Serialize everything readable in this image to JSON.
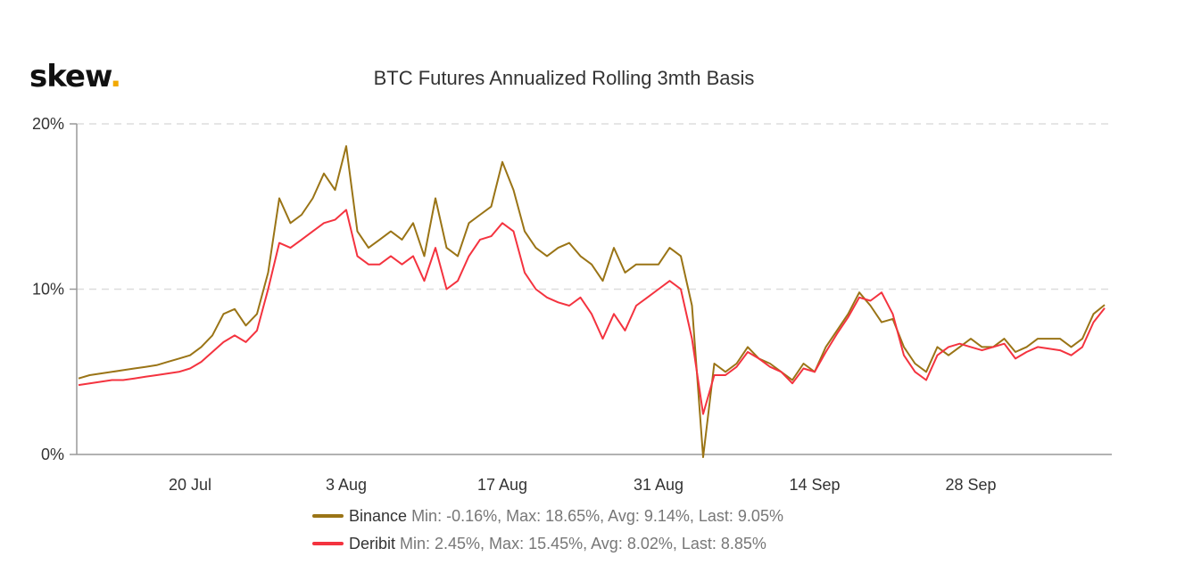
{
  "logo": {
    "text": "skew",
    "dot": "."
  },
  "chart_data": {
    "type": "line",
    "title": "BTC Futures Annualized Rolling 3mth Basis",
    "ylim": [
      0,
      20
    ],
    "yticks": [
      0,
      10,
      20
    ],
    "ytick_labels": [
      "0%",
      "10%",
      "20%"
    ],
    "xtick_labels": [
      "20 Jul",
      "3 Aug",
      "17 Aug",
      "31 Aug",
      "14 Sep",
      "28 Sep"
    ],
    "grid": "horizontal dashed",
    "legend": "bottom",
    "x": [
      "Jul 10",
      "Jul 11",
      "Jul 12",
      "Jul 13",
      "Jul 14",
      "Jul 15",
      "Jul 16",
      "Jul 17",
      "Jul 18",
      "Jul 19",
      "Jul 20",
      "Jul 21",
      "Jul 22",
      "Jul 23",
      "Jul 24",
      "Jul 25",
      "Jul 26",
      "Jul 27",
      "Jul 28",
      "Jul 29",
      "Jul 30",
      "Jul 31",
      "Aug 1",
      "Aug 2",
      "Aug 3",
      "Aug 4",
      "Aug 5",
      "Aug 6",
      "Aug 7",
      "Aug 8",
      "Aug 9",
      "Aug 10",
      "Aug 11",
      "Aug 12",
      "Aug 13",
      "Aug 14",
      "Aug 15",
      "Aug 16",
      "Aug 17",
      "Aug 18",
      "Aug 19",
      "Aug 20",
      "Aug 21",
      "Aug 22",
      "Aug 23",
      "Aug 24",
      "Aug 25",
      "Aug 26",
      "Aug 27",
      "Aug 28",
      "Aug 29",
      "Aug 30",
      "Aug 31",
      "Sep 1",
      "Sep 2",
      "Sep 3",
      "Sep 4",
      "Sep 5",
      "Sep 6",
      "Sep 7",
      "Sep 8",
      "Sep 9",
      "Sep 10",
      "Sep 11",
      "Sep 12",
      "Sep 13",
      "Sep 14",
      "Sep 15",
      "Sep 16",
      "Sep 17",
      "Sep 18",
      "Sep 19",
      "Sep 20",
      "Sep 21",
      "Sep 22",
      "Sep 23",
      "Sep 24",
      "Sep 25",
      "Sep 26",
      "Sep 27",
      "Sep 28",
      "Sep 29",
      "Sep 30",
      "Oct 1",
      "Oct 2",
      "Oct 3",
      "Oct 4",
      "Oct 5",
      "Oct 6",
      "Oct 7",
      "Oct 8",
      "Oct 9",
      "Oct 10"
    ],
    "series": [
      {
        "name": "Binance",
        "stats": "Min: -0.16%, Max: 18.65%, Avg: 9.14%, Last: 9.05%",
        "color": "#9a7416",
        "values": [
          4.6,
          4.8,
          4.9,
          5.0,
          5.1,
          5.2,
          5.3,
          5.4,
          5.6,
          5.8,
          6.0,
          6.5,
          7.2,
          8.5,
          8.8,
          7.8,
          8.5,
          11,
          15.5,
          14,
          14.5,
          15.5,
          17,
          16,
          18.65,
          13.5,
          12.5,
          13,
          13.5,
          13,
          14,
          12,
          15.5,
          12.5,
          12,
          14,
          14.5,
          15,
          17.7,
          16,
          13.5,
          12.5,
          12,
          12.5,
          12.8,
          12,
          11.5,
          10.5,
          12.5,
          11,
          11.5,
          11.5,
          11.5,
          12.5,
          12,
          9,
          -0.16,
          5.5,
          5,
          5.5,
          6.5,
          5.8,
          5.5,
          5,
          4.5,
          5.5,
          5,
          6.5,
          7.5,
          8.5,
          9.8,
          9,
          8,
          8.2,
          6.5,
          5.5,
          5,
          6.5,
          6,
          6.5,
          7,
          6.5,
          6.5,
          7,
          6.2,
          6.5,
          7,
          7,
          7,
          6.5,
          7,
          8.5,
          9.05
        ]
      },
      {
        "name": "Deribit",
        "stats": "Min: 2.45%, Max: 15.45%, Avg: 8.02%, Last: 8.85%",
        "color": "#f4333f",
        "values": [
          4.2,
          4.3,
          4.4,
          4.5,
          4.5,
          4.6,
          4.7,
          4.8,
          4.9,
          5.0,
          5.2,
          5.6,
          6.2,
          6.8,
          7.2,
          6.8,
          7.5,
          10,
          12.8,
          12.5,
          13,
          13.5,
          14,
          14.2,
          14.8,
          12,
          11.5,
          11.5,
          12,
          11.5,
          12,
          10.5,
          12.5,
          10,
          10.5,
          12,
          13,
          13.2,
          14,
          13.5,
          11,
          10,
          9.5,
          9.2,
          9,
          9.5,
          8.5,
          7,
          8.5,
          7.5,
          9,
          9.5,
          10,
          10.5,
          10,
          7,
          2.45,
          4.8,
          4.8,
          5.3,
          6.2,
          5.8,
          5.3,
          5,
          4.3,
          5.2,
          5,
          6.2,
          7.3,
          8.3,
          9.5,
          9.3,
          9.8,
          8.5,
          6,
          5,
          4.5,
          6,
          6.5,
          6.7,
          6.5,
          6.3,
          6.5,
          6.7,
          5.8,
          6.2,
          6.5,
          6.4,
          6.3,
          6,
          6.5,
          8,
          8.85
        ]
      }
    ]
  }
}
